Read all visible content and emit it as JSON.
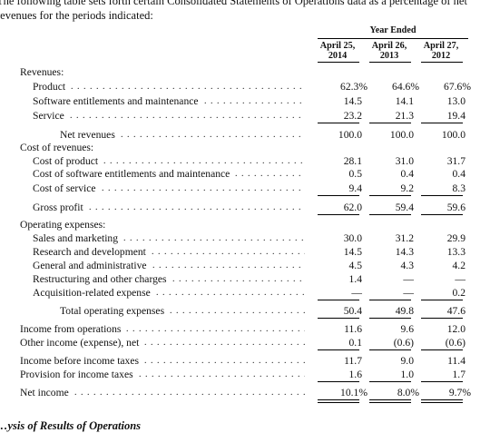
{
  "intro": {
    "text": "The following table sets forth certain Consolidated Statements of Operations data as a percentage of net revenues for the periods indicated:"
  },
  "table": {
    "period_header": "Year Ended",
    "columns": [
      {
        "line1": "April 25,",
        "line2": "2014"
      },
      {
        "line1": "April 26,",
        "line2": "2013"
      },
      {
        "line1": "April 27,",
        "line2": "2012"
      }
    ],
    "rows": [
      {
        "label": "Revenues:",
        "indent": 0,
        "leader": false,
        "values": [
          "",
          "",
          ""
        ]
      },
      {
        "label": "Product",
        "indent": 1,
        "leader": true,
        "values": [
          "62.3%",
          "64.6%",
          "67.6%"
        ],
        "pct": true
      },
      {
        "label": "Software entitlements and maintenance",
        "indent": 1,
        "leader": true,
        "values": [
          "14.5",
          "14.1",
          "13.0"
        ]
      },
      {
        "label": "Service",
        "indent": 1,
        "leader": true,
        "values": [
          "23.2",
          "21.3",
          "19.4"
        ],
        "rule_below": "single"
      },
      {
        "label": "Net revenues",
        "indent": 2,
        "leader": true,
        "values": [
          "100.0",
          "100.0",
          "100.0"
        ]
      },
      {
        "label": "Cost of revenues:",
        "indent": 0,
        "leader": false,
        "values": [
          "",
          "",
          ""
        ]
      },
      {
        "label": "Cost of product",
        "indent": 1,
        "leader": true,
        "values": [
          "28.1",
          "31.0",
          "31.7"
        ]
      },
      {
        "label": "Cost of software entitlements and maintenance",
        "indent": 1,
        "leader": true,
        "values": [
          "0.5",
          "0.4",
          "0.4"
        ]
      },
      {
        "label": "Cost of service",
        "indent": 1,
        "leader": true,
        "values": [
          "9.4",
          "9.2",
          "8.3"
        ],
        "rule_below": "single"
      },
      {
        "label": "Gross profit",
        "indent": 1,
        "leader": true,
        "values": [
          "62.0",
          "59.4",
          "59.6"
        ],
        "rule_below": "single"
      },
      {
        "label": "Operating expenses:",
        "indent": 0,
        "leader": false,
        "values": [
          "",
          "",
          ""
        ]
      },
      {
        "label": "Sales and marketing",
        "indent": 1,
        "leader": true,
        "values": [
          "30.0",
          "31.2",
          "29.9"
        ]
      },
      {
        "label": "Research and development",
        "indent": 1,
        "leader": true,
        "values": [
          "14.5",
          "14.3",
          "13.3"
        ]
      },
      {
        "label": "General and administrative",
        "indent": 1,
        "leader": true,
        "values": [
          "4.5",
          "4.3",
          "4.2"
        ]
      },
      {
        "label": "Restructuring and other charges",
        "indent": 1,
        "leader": true,
        "values": [
          "1.4",
          "—",
          "—"
        ]
      },
      {
        "label": "Acquisition-related expense",
        "indent": 1,
        "leader": true,
        "values": [
          "—",
          "—",
          "0.2"
        ],
        "rule_below": "single"
      },
      {
        "label": "Total operating expenses",
        "indent": 2,
        "leader": true,
        "values": [
          "50.4",
          "49.8",
          "47.6"
        ],
        "rule_below": "single"
      },
      {
        "label": "Income from operations",
        "indent": 0,
        "leader": true,
        "values": [
          "11.6",
          "9.6",
          "12.0"
        ]
      },
      {
        "label": "Other income (expense), net",
        "indent": 0,
        "leader": true,
        "values": [
          "0.1",
          "(0.6)",
          "(0.6)"
        ],
        "rule_below": "single"
      },
      {
        "label": "Income before income taxes",
        "indent": 0,
        "leader": true,
        "values": [
          "11.7",
          "9.0",
          "11.4"
        ]
      },
      {
        "label": "Provision for income taxes",
        "indent": 0,
        "leader": true,
        "values": [
          "1.6",
          "1.0",
          "1.7"
        ],
        "rule_below": "single"
      },
      {
        "label": "Net income",
        "indent": 0,
        "leader": true,
        "values": [
          "10.1%",
          "8.0%",
          "9.7%"
        ],
        "pct": true,
        "rule_below": "double"
      }
    ]
  },
  "bottom_heading": "…ysis of Results of Operations"
}
